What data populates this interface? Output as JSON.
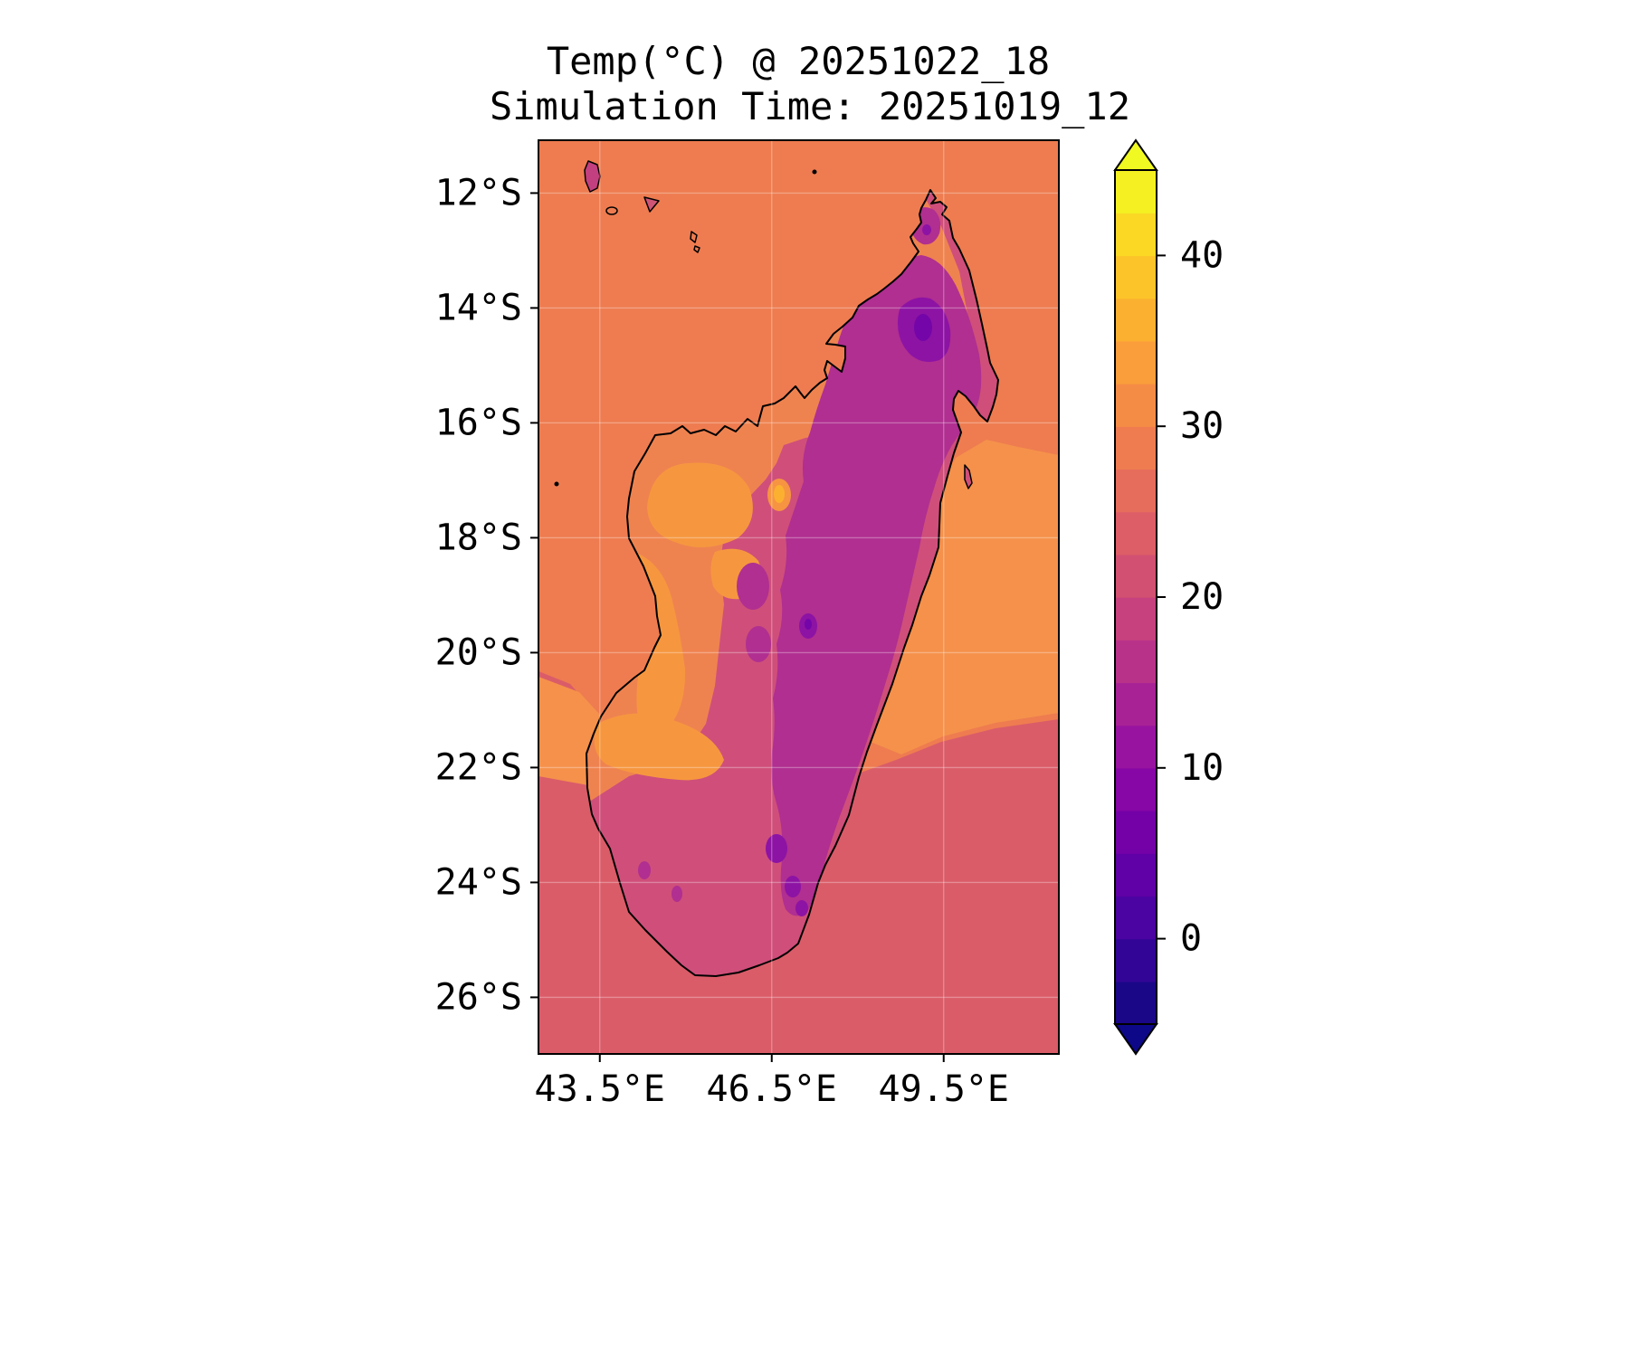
{
  "title": {
    "line1": "Temp(°C) @ 20251022_18",
    "line2": "Simulation Time: 20251019_12"
  },
  "axes": {
    "x_ticks": [
      {
        "deg": 43.5,
        "label": "43.5°E"
      },
      {
        "deg": 46.5,
        "label": "46.5°E"
      },
      {
        "deg": 49.5,
        "label": "49.5°E"
      }
    ],
    "y_ticks": [
      {
        "deg": 12,
        "label": "12°S"
      },
      {
        "deg": 14,
        "label": "14°S"
      },
      {
        "deg": 16,
        "label": "16°S"
      },
      {
        "deg": 18,
        "label": "18°S"
      },
      {
        "deg": 20,
        "label": "20°S"
      },
      {
        "deg": 22,
        "label": "22°S"
      },
      {
        "deg": 24,
        "label": "24°S"
      },
      {
        "deg": 26,
        "label": "26°S"
      }
    ]
  },
  "colorbar": {
    "min": -5,
    "max": 45,
    "step": 2.5,
    "extend": "both",
    "ticks": [
      {
        "value": 40,
        "label": "40"
      },
      {
        "value": 30,
        "label": "30"
      },
      {
        "value": 20,
        "label": "20"
      },
      {
        "value": 10,
        "label": "10"
      },
      {
        "value": 0,
        "label": "0"
      }
    ],
    "extend_over_color": "#f0f921",
    "extend_under_color": "#0d0887",
    "band_colors_bottom_to_top": [
      "#1a0788",
      "#320597",
      "#4b03a1",
      "#5f01a6",
      "#7401a8",
      "#8606a6",
      "#9813a0",
      "#a82296",
      "#b9328a",
      "#c6417e",
      "#d25071",
      "#dd5e67",
      "#e66c5c",
      "#ee7c50",
      "#f58c46",
      "#fa9d3b",
      "#fcb030",
      "#fdc429",
      "#fad824",
      "#f4f022"
    ]
  },
  "colors": {
    "background": "#ffffff",
    "ocean_north": "#ee7c50",
    "ocean_south": "#da5c69",
    "ocean_warm_patch": "#f5914b",
    "land_base_orange": "#ef8350",
    "land_light_orange": "#f6973f",
    "land_pink": "#cf4f7a",
    "highlands_purple": "#b02f90",
    "cold_purple": "#8d13a4",
    "coldest_violet": "#7405a8",
    "hot_spot_halo": "#f79441",
    "hot_spot_core": "#fcb030",
    "comoros_fill": "#c2407f",
    "anjouan_fill": "#cf5577",
    "coastline": "#000000"
  },
  "chart_data": {
    "type": "heatmap",
    "title": "Temp(°C) @ 20251022_18",
    "subtitle": "Simulation Time: 20251019_12",
    "variable": "Temp",
    "units": "°C",
    "valid_time": "20251022_18",
    "simulation_time": "20251019_12",
    "region": "Madagascar and surrounding ocean",
    "colormap": "plasma",
    "x_axis": {
      "tick_labels": [
        "43.5°E",
        "46.5°E",
        "49.5°E"
      ],
      "range_deg_east": [
        42.4,
        51.5
      ]
    },
    "y_axis": {
      "tick_labels": [
        "12°S",
        "14°S",
        "16°S",
        "18°S",
        "20°S",
        "22°S",
        "24°S",
        "26°S"
      ],
      "range_deg_south": [
        11.1,
        27.0
      ]
    },
    "colorbar_ticks": [
      0,
      10,
      20,
      30,
      40
    ],
    "contour_levels": {
      "min": -5,
      "max": 45,
      "step": 2.5,
      "extend": "both"
    },
    "estimated_field_values_c": {
      "ocean_north_of_madagascar": 28,
      "ocean_south_and_southeast": 23,
      "ocean_warm_patch_east_coast": 31,
      "west_coast_lowlands": 31,
      "central_highlands_band": 16,
      "tsaratanana_cold_core_north": 6,
      "southern_highland_cold_spots": 9,
      "interior_hot_spot_17s": 35,
      "comoros_islands": 20
    },
    "grid": true,
    "legend_position": "right-colorbar"
  }
}
